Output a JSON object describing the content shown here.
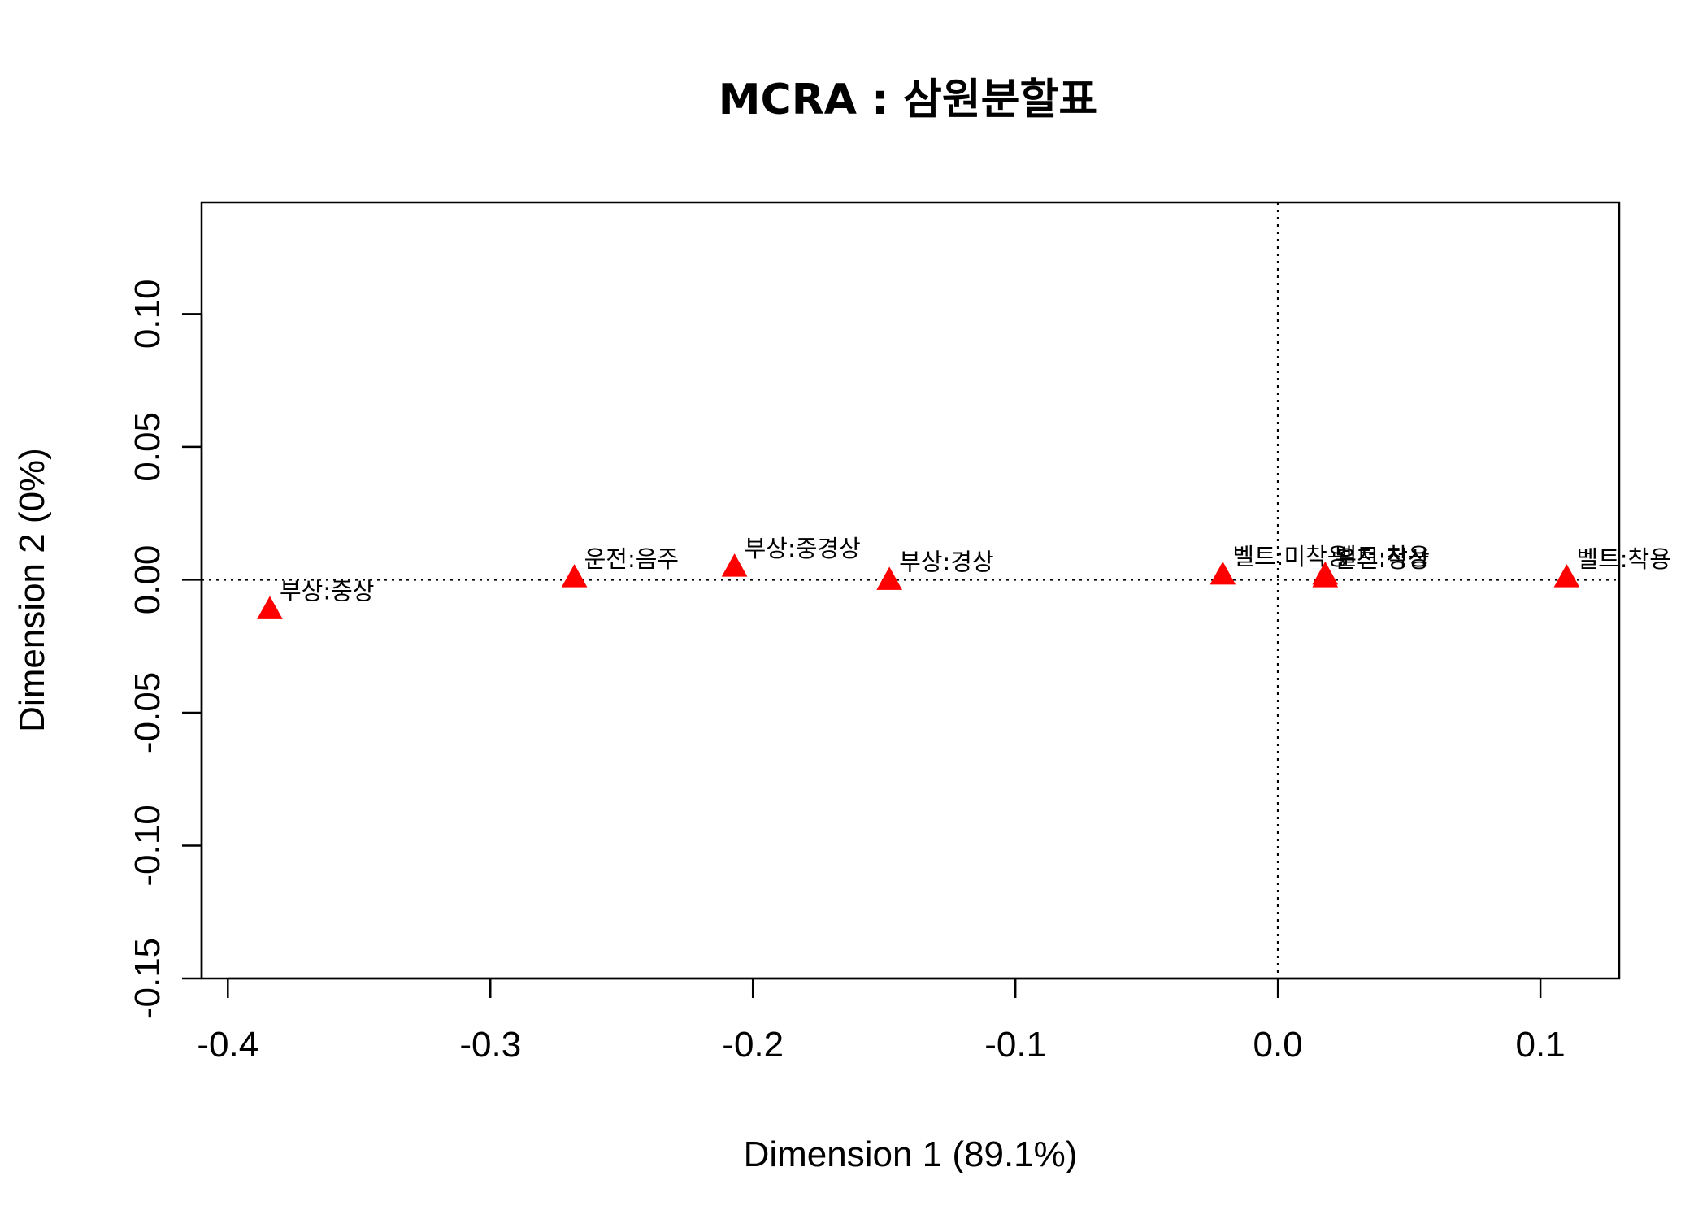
{
  "chart_data": {
    "type": "scatter",
    "title": "MCRA : 삼원분할표",
    "xlabel": "Dimension 1 (89.1%)",
    "ylabel": "Dimension 2 (0%)",
    "xlim": [
      -0.41,
      0.13
    ],
    "ylim": [
      -0.15,
      0.142
    ],
    "x_ticks": [
      -0.4,
      -0.3,
      -0.2,
      -0.1,
      0.0,
      0.1
    ],
    "x_tick_labels": [
      "-0.4",
      "-0.3",
      "-0.2",
      "-0.1",
      "0.0",
      "0.1"
    ],
    "y_ticks": [
      -0.15,
      -0.1,
      -0.05,
      0.0,
      0.05,
      0.1
    ],
    "y_tick_labels": [
      "-0.15",
      "-0.10",
      "-0.05",
      "0.00",
      "0.05",
      "0.10"
    ],
    "reference_lines": {
      "x": 0,
      "y": 0,
      "style": "dotted"
    },
    "marker": {
      "shape": "triangle",
      "color": "#ff0000"
    },
    "points": [
      {
        "label": "부상:중상",
        "x": -0.384,
        "y": -0.011
      },
      {
        "label": "운전:음주",
        "x": -0.268,
        "y": 0.001
      },
      {
        "label": "부상:중경상",
        "x": -0.207,
        "y": 0.005
      },
      {
        "label": "부상:경상",
        "x": -0.148,
        "y": 0.0
      },
      {
        "label": "벨트:미착용",
        "x": -0.021,
        "y": 0.002
      },
      {
        "label": "운전:정상",
        "x": 0.018,
        "y": 0.001
      },
      {
        "label": "벨트:착용",
        "x": 0.018,
        "y": 0.002
      },
      {
        "label": "벨트:착용",
        "x": 0.11,
        "y": 0.001
      }
    ]
  }
}
